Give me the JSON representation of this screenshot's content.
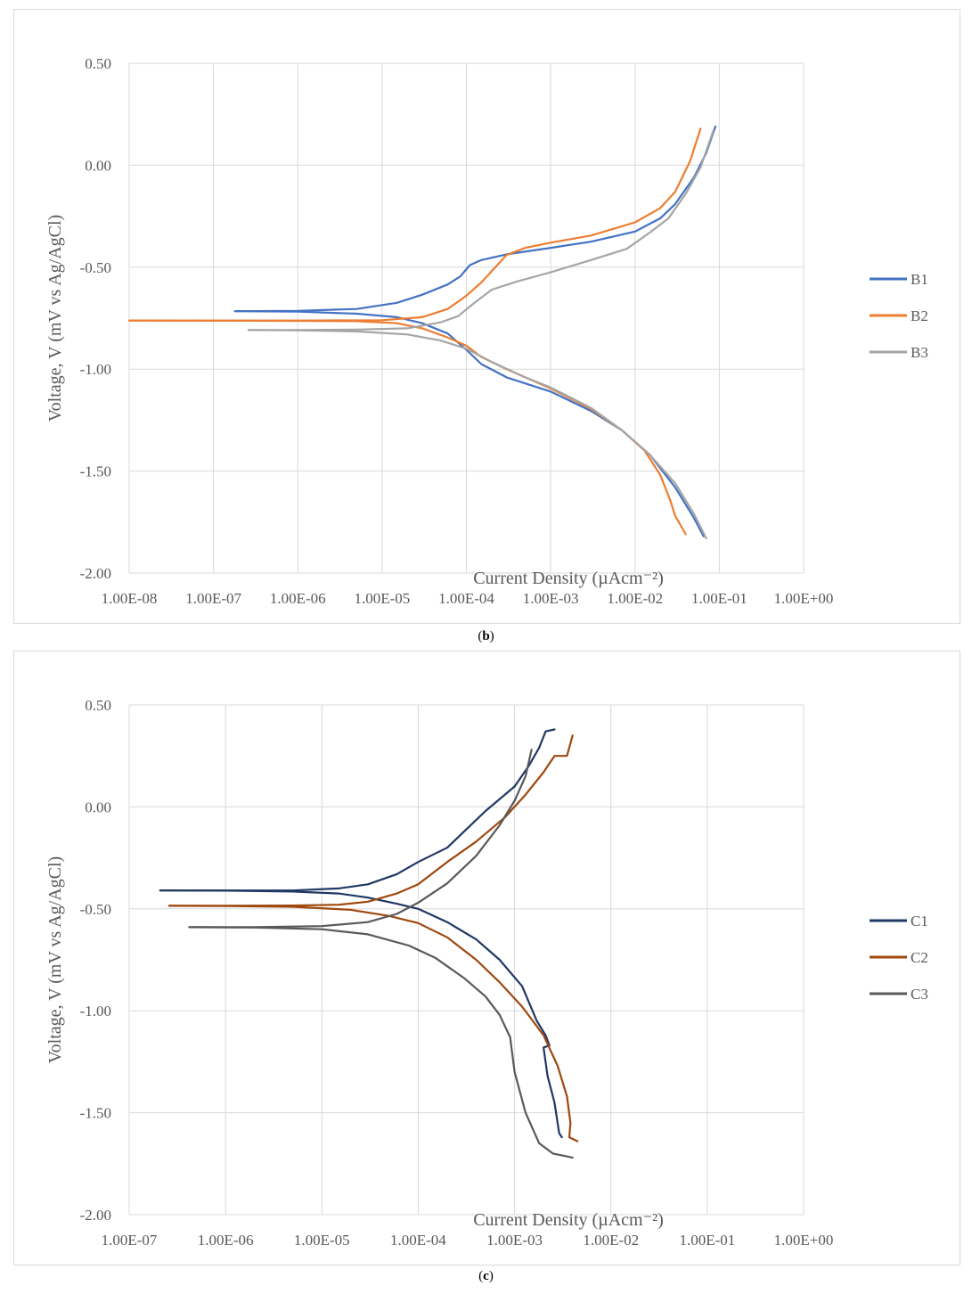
{
  "chart_data": [
    {
      "type": "line",
      "caption": "b",
      "title": "",
      "xlabel": "Current Density (µAcm⁻²)",
      "ylabel": "Voltage, V (mV vs Ag/AgCl)",
      "x_scale": "log",
      "xlim": [
        "1.00E-08",
        "1.00E+00"
      ],
      "ylim": [
        -2.0,
        0.5
      ],
      "x_ticks": [
        "1.00E-08",
        "1.00E-07",
        "1.00E-06",
        "1.00E-05",
        "1.00E-04",
        "1.00E-03",
        "1.00E-02",
        "1.00E-01",
        "1.00E+00"
      ],
      "y_ticks": [
        "0.50",
        "0.00",
        "-0.50",
        "-1.00",
        "-1.50",
        "-2.00"
      ],
      "grid": true,
      "legend_position": "right",
      "series": [
        {
          "name": "B1",
          "color": "#4472c4",
          "anodic": [
            [
              1.8e-07,
              -0.716
            ],
            [
              1e-06,
              -0.714
            ],
            [
              5e-06,
              -0.705
            ],
            [
              1.5e-05,
              -0.675
            ],
            [
              3e-05,
              -0.635
            ],
            [
              6e-05,
              -0.585
            ],
            [
              8.5e-05,
              -0.545
            ],
            [
              0.00011,
              -0.49
            ],
            [
              0.00015,
              -0.465
            ],
            [
              0.0003,
              -0.437
            ],
            [
              0.001,
              -0.405
            ],
            [
              0.003,
              -0.375
            ],
            [
              0.01,
              -0.325
            ],
            [
              0.02,
              -0.26
            ],
            [
              0.03,
              -0.19
            ],
            [
              0.05,
              -0.06
            ],
            [
              0.07,
              0.06
            ],
            [
              0.09,
              0.19
            ]
          ],
          "cathodic": [
            [
              1.8e-07,
              -0.716
            ],
            [
              1e-06,
              -0.718
            ],
            [
              5e-06,
              -0.728
            ],
            [
              1.5e-05,
              -0.745
            ],
            [
              3e-05,
              -0.775
            ],
            [
              6e-05,
              -0.825
            ],
            [
              0.0001,
              -0.905
            ],
            [
              0.00015,
              -0.975
            ],
            [
              0.0003,
              -1.04
            ],
            [
              0.001,
              -1.11
            ],
            [
              0.003,
              -1.205
            ],
            [
              0.007,
              -1.3
            ],
            [
              0.015,
              -1.42
            ],
            [
              0.03,
              -1.58
            ],
            [
              0.05,
              -1.73
            ],
            [
              0.065,
              -1.82
            ]
          ]
        },
        {
          "name": "B2",
          "color": "#ed7d31",
          "anodic": [
            [
              1e-08,
              -0.762
            ],
            [
              1e-06,
              -0.762
            ],
            [
              1e-05,
              -0.76
            ],
            [
              3e-05,
              -0.745
            ],
            [
              6e-05,
              -0.705
            ],
            [
              0.0001,
              -0.64
            ],
            [
              0.00015,
              -0.575
            ],
            [
              0.0003,
              -0.44
            ],
            [
              0.0005,
              -0.405
            ],
            [
              0.001,
              -0.38
            ],
            [
              0.003,
              -0.345
            ],
            [
              0.01,
              -0.28
            ],
            [
              0.02,
              -0.21
            ],
            [
              0.03,
              -0.13
            ],
            [
              0.045,
              0.02
            ],
            [
              0.06,
              0.18
            ]
          ],
          "cathodic": [
            [
              1e-08,
              -0.762
            ],
            [
              1e-06,
              -0.763
            ],
            [
              5e-06,
              -0.765
            ],
            [
              1.5e-05,
              -0.775
            ],
            [
              3e-05,
              -0.8
            ],
            [
              6e-05,
              -0.845
            ],
            [
              0.0001,
              -0.885
            ],
            [
              0.00015,
              -0.94
            ],
            [
              0.0003,
              -1.0
            ],
            [
              0.001,
              -1.095
            ],
            [
              0.003,
              -1.195
            ],
            [
              0.007,
              -1.3
            ],
            [
              0.013,
              -1.4
            ],
            [
              0.02,
              -1.52
            ],
            [
              0.026,
              -1.64
            ],
            [
              0.03,
              -1.72
            ],
            [
              0.04,
              -1.81
            ]
          ]
        },
        {
          "name": "B3",
          "color": "#a5a5a5",
          "anodic": [
            [
              2.6e-07,
              -0.808
            ],
            [
              1e-06,
              -0.808
            ],
            [
              5e-06,
              -0.806
            ],
            [
              2e-05,
              -0.8
            ],
            [
              5e-05,
              -0.77
            ],
            [
              8e-05,
              -0.74
            ],
            [
              0.00012,
              -0.68
            ],
            [
              0.0002,
              -0.61
            ],
            [
              0.0004,
              -0.57
            ],
            [
              0.001,
              -0.525
            ],
            [
              0.003,
              -0.465
            ],
            [
              0.008,
              -0.41
            ],
            [
              0.015,
              -0.33
            ],
            [
              0.025,
              -0.26
            ],
            [
              0.04,
              -0.14
            ],
            [
              0.06,
              -0.01
            ],
            [
              0.085,
              0.17
            ]
          ],
          "cathodic": [
            [
              2.6e-07,
              -0.808
            ],
            [
              1e-06,
              -0.81
            ],
            [
              5e-06,
              -0.815
            ],
            [
              2e-05,
              -0.83
            ],
            [
              5e-05,
              -0.86
            ],
            [
              0.0001,
              -0.9
            ],
            [
              0.0002,
              -0.965
            ],
            [
              0.0005,
              -1.04
            ],
            [
              0.001,
              -1.09
            ],
            [
              0.003,
              -1.19
            ],
            [
              0.007,
              -1.3
            ],
            [
              0.015,
              -1.42
            ],
            [
              0.03,
              -1.56
            ],
            [
              0.05,
              -1.71
            ],
            [
              0.07,
              -1.83
            ]
          ]
        }
      ]
    },
    {
      "type": "line",
      "caption": "c",
      "title": "",
      "xlabel": "Current Density (µAcm⁻²)",
      "ylabel": "Voltage, V (mV vs Ag/AgCl)",
      "x_scale": "log",
      "xlim": [
        "1.00E-07",
        "1.00E+00"
      ],
      "ylim": [
        -2.0,
        0.5
      ],
      "x_ticks": [
        "1.00E-07",
        "1.00E-06",
        "1.00E-05",
        "1.00E-04",
        "1.00E-03",
        "1.00E-02",
        "1.00E-01",
        "1.00E+00"
      ],
      "y_ticks": [
        "0.50",
        "0.00",
        "-0.50",
        "-1.00",
        "-1.50",
        "-2.00"
      ],
      "grid": true,
      "legend_position": "right",
      "series": [
        {
          "name": "C1",
          "color": "#203864",
          "anodic": [
            [
              2.1e-07,
              -0.41
            ],
            [
              1e-06,
              -0.41
            ],
            [
              5e-06,
              -0.41
            ],
            [
              1.5e-05,
              -0.4
            ],
            [
              3e-05,
              -0.38
            ],
            [
              6e-05,
              -0.33
            ],
            [
              0.0001,
              -0.27
            ],
            [
              0.0002,
              -0.2
            ],
            [
              0.0003,
              -0.12
            ],
            [
              0.0005,
              -0.02
            ],
            [
              0.001,
              0.1
            ],
            [
              0.0014,
              0.2
            ],
            [
              0.0018,
              0.29
            ],
            [
              0.0021,
              0.37
            ],
            [
              0.0026,
              0.38
            ]
          ],
          "cathodic": [
            [
              2.1e-07,
              -0.41
            ],
            [
              1e-06,
              -0.411
            ],
            [
              5e-06,
              -0.415
            ],
            [
              1.5e-05,
              -0.425
            ],
            [
              3e-05,
              -0.445
            ],
            [
              6e-05,
              -0.475
            ],
            [
              0.0001,
              -0.5
            ],
            [
              0.0002,
              -0.565
            ],
            [
              0.0004,
              -0.65
            ],
            [
              0.0007,
              -0.75
            ],
            [
              0.0012,
              -0.88
            ],
            [
              0.0017,
              -1.05
            ],
            [
              0.0021,
              -1.12
            ],
            [
              0.0023,
              -1.17
            ],
            [
              0.002,
              -1.18
            ],
            [
              0.0022,
              -1.32
            ],
            [
              0.0026,
              -1.45
            ],
            [
              0.0029,
              -1.6
            ],
            [
              0.0031,
              -1.62
            ]
          ]
        },
        {
          "name": "C2",
          "color": "#9e480e",
          "anodic": [
            [
              2.6e-07,
              -0.485
            ],
            [
              1e-06,
              -0.485
            ],
            [
              5e-06,
              -0.484
            ],
            [
              1.5e-05,
              -0.48
            ],
            [
              3e-05,
              -0.465
            ],
            [
              6e-05,
              -0.425
            ],
            [
              0.0001,
              -0.38
            ],
            [
              0.0002,
              -0.27
            ],
            [
              0.0004,
              -0.17
            ],
            [
              0.0008,
              -0.05
            ],
            [
              0.0013,
              0.06
            ],
            [
              0.002,
              0.17
            ],
            [
              0.0026,
              0.25
            ],
            [
              0.0035,
              0.25
            ],
            [
              0.004,
              0.35
            ]
          ],
          "cathodic": [
            [
              2.6e-07,
              -0.485
            ],
            [
              1e-06,
              -0.486
            ],
            [
              5e-06,
              -0.49
            ],
            [
              2e-05,
              -0.505
            ],
            [
              5e-05,
              -0.535
            ],
            [
              0.0001,
              -0.57
            ],
            [
              0.0002,
              -0.64
            ],
            [
              0.0004,
              -0.75
            ],
            [
              0.0007,
              -0.86
            ],
            [
              0.0012,
              -0.98
            ],
            [
              0.002,
              -1.12
            ],
            [
              0.0028,
              -1.27
            ],
            [
              0.0035,
              -1.42
            ],
            [
              0.0038,
              -1.55
            ],
            [
              0.0037,
              -1.62
            ],
            [
              0.0045,
              -1.64
            ]
          ]
        },
        {
          "name": "C3",
          "color": "#595959",
          "anodic": [
            [
              4.2e-07,
              -0.59
            ],
            [
              2e-06,
              -0.59
            ],
            [
              1e-05,
              -0.585
            ],
            [
              3e-05,
              -0.565
            ],
            [
              6e-05,
              -0.525
            ],
            [
              0.0001,
              -0.47
            ],
            [
              0.0002,
              -0.375
            ],
            [
              0.0004,
              -0.24
            ],
            [
              0.0007,
              -0.09
            ],
            [
              0.001,
              0.03
            ],
            [
              0.0013,
              0.15
            ],
            [
              0.0015,
              0.28
            ]
          ],
          "cathodic": [
            [
              4.2e-07,
              -0.59
            ],
            [
              2e-06,
              -0.592
            ],
            [
              1e-05,
              -0.6
            ],
            [
              3e-05,
              -0.625
            ],
            [
              8e-05,
              -0.68
            ],
            [
              0.00015,
              -0.74
            ],
            [
              0.0003,
              -0.84
            ],
            [
              0.0005,
              -0.93
            ],
            [
              0.0007,
              -1.02
            ],
            [
              0.0009,
              -1.13
            ],
            [
              0.001,
              -1.3
            ],
            [
              0.0013,
              -1.5
            ],
            [
              0.0018,
              -1.65
            ],
            [
              0.0025,
              -1.7
            ],
            [
              0.004,
              -1.72
            ]
          ]
        }
      ]
    }
  ]
}
